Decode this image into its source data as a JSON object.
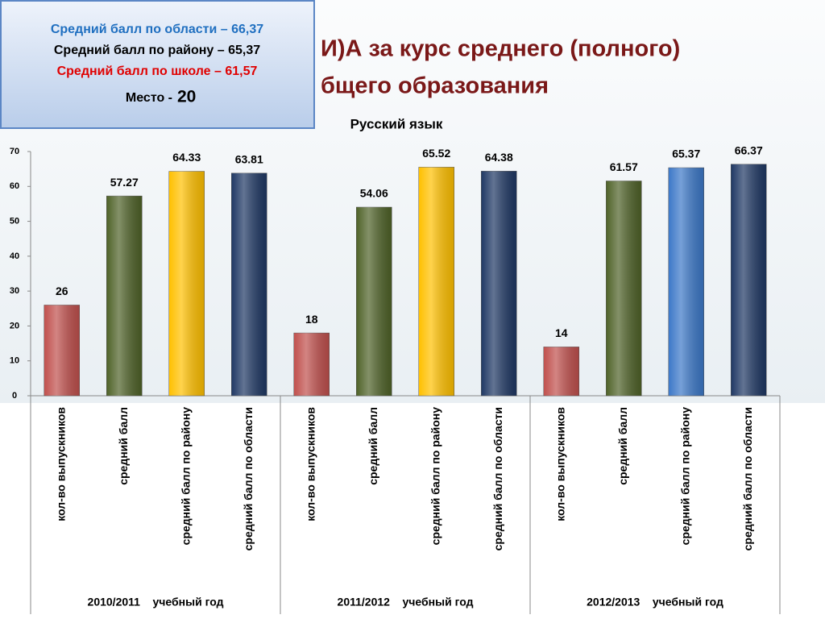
{
  "info_box": {
    "lines": [
      "Средний балл по области – 66,37",
      "Средний балл по району – 65,37",
      "Средний балл по школе – 61,57"
    ],
    "place_label": "Место -",
    "place_value": "20"
  },
  "chart_data": {
    "type": "bar",
    "title": [
      "И)А  за курс  среднего (полного)",
      "бщего образования"
    ],
    "subtitle": "Русский язык",
    "categories": [
      "кол-во выпускников",
      "средний балл",
      "средний балл по району",
      "средний балл по области",
      "кол-во выпускников",
      "средний балл",
      "средний балл по району",
      "средний балл по области",
      "кол-во выпускников",
      "средний балл",
      "средний балл по району",
      "средний балл по области"
    ],
    "groups": [
      "2010/2011    учебный год",
      "2011/2012    учебный год",
      "2012/2013    учебный год"
    ],
    "values": [
      26,
      57.27,
      64.33,
      63.81,
      18,
      54.06,
      65.52,
      64.38,
      14,
      61.57,
      65.37,
      66.37
    ],
    "colors": [
      "#c0504d",
      "#4f6228",
      "#ffc000",
      "#1f3864",
      "#c0504d",
      "#4f6228",
      "#ffc000",
      "#1f3864",
      "#c0504d",
      "#4f6228",
      "#3c78c8",
      "#1f3864"
    ],
    "ylim": [
      0,
      70
    ],
    "yticks": [
      0,
      10,
      20,
      30,
      40,
      50,
      60,
      70
    ]
  }
}
